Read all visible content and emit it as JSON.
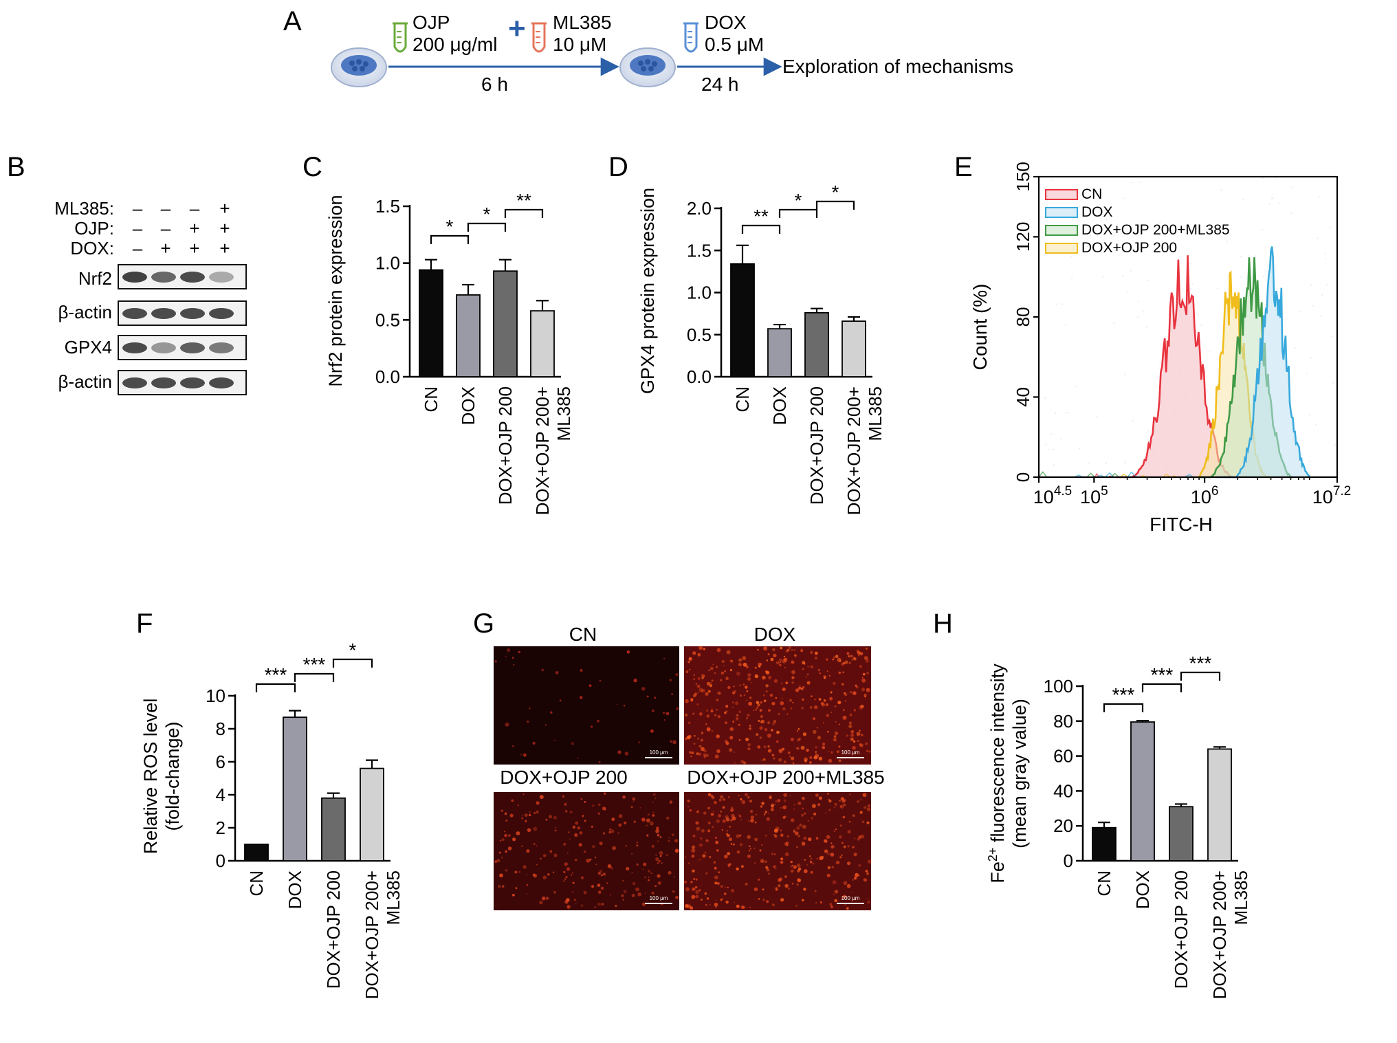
{
  "panel_letters": [
    "A",
    "B",
    "C",
    "D",
    "E",
    "F",
    "G",
    "H"
  ],
  "schematic": {
    "reagent_1_name": "OJP",
    "reagent_1_dose": "200 μg/ml",
    "reagent_2_name": "ML385",
    "reagent_2_dose": "10 μM",
    "plus_sign": "+",
    "step_1_time": "6 h",
    "reagent_3_name": "DOX",
    "reagent_3_dose": "0.5 μM",
    "step_2_time": "24 h",
    "outcome": "Exploration of mechanisms"
  },
  "western": {
    "row_labels": [
      "ML385:",
      "OJP:",
      "DOX:"
    ],
    "signs": [
      [
        "–",
        "–",
        "–",
        "+"
      ],
      [
        "–",
        "–",
        "+",
        "+"
      ],
      [
        "–",
        "+",
        "+",
        "+"
      ]
    ],
    "blots": [
      "Nrf2",
      "β-actin",
      "GPX4",
      "β-actin"
    ],
    "band_intensity": [
      [
        0.9,
        0.7,
        0.85,
        0.35
      ],
      [
        0.85,
        0.85,
        0.85,
        0.85
      ],
      [
        0.85,
        0.45,
        0.75,
        0.6
      ],
      [
        0.85,
        0.85,
        0.85,
        0.85
      ]
    ]
  },
  "group_labels": {
    "cn": "CN",
    "dox": "DOX",
    "dox_ojp": "DOX+OJP 200",
    "dox_ojp_ml_1": "DOX+OJP 200+",
    "dox_ojp_ml_2": "ML385"
  },
  "bar_colors": [
    "#0a0a0a",
    "#9a9aa6",
    "#6b6b6b",
    "#d2d2d2"
  ],
  "fluorescence": {
    "tiles": [
      "CN",
      "DOX",
      "DOX+OJP 200",
      "DOX+OJP 200+ML385"
    ],
    "scale_bar": "100 μm",
    "intensity": [
      0.05,
      0.85,
      0.45,
      0.75
    ]
  },
  "chart_data": [
    {
      "panel": "C",
      "type": "bar",
      "categories": [
        "CN",
        "DOX",
        "DOX+OJP 200",
        "DOX+OJP 200+ML385"
      ],
      "values": [
        0.94,
        0.72,
        0.93,
        0.58
      ],
      "errors": [
        0.09,
        0.09,
        0.1,
        0.09
      ],
      "ylabel": "Nrf2 protein expression",
      "ylim": [
        0,
        1.5
      ],
      "yticks": [
        0.0,
        0.5,
        1.0,
        1.5
      ],
      "yticklabels": [
        "0.0",
        "0.5",
        "1.0",
        "1.5"
      ],
      "significance": [
        {
          "groups": [
            0,
            1
          ],
          "label": "*"
        },
        {
          "groups": [
            1,
            2
          ],
          "label": "*"
        },
        {
          "groups": [
            2,
            3
          ],
          "label": "**"
        }
      ]
    },
    {
      "panel": "D",
      "type": "bar",
      "categories": [
        "CN",
        "DOX",
        "DOX+OJP 200",
        "DOX+OJP 200+ML385"
      ],
      "values": [
        1.34,
        0.57,
        0.76,
        0.66
      ],
      "errors": [
        0.22,
        0.05,
        0.05,
        0.05
      ],
      "ylabel": "GPX4 protein expression",
      "ylim": [
        0,
        2.0
      ],
      "yticks": [
        0.0,
        0.5,
        1.0,
        1.5,
        2.0
      ],
      "yticklabels": [
        "0.0",
        "0.5",
        "1.0",
        "1.5",
        "2.0"
      ],
      "significance": [
        {
          "groups": [
            0,
            1
          ],
          "label": "**"
        },
        {
          "groups": [
            1,
            2
          ],
          "label": "*"
        },
        {
          "groups": [
            2,
            3
          ],
          "label": "*"
        }
      ]
    },
    {
      "panel": "E",
      "type": "area",
      "xlabel": "FITC-H",
      "ylabel": "Count (%)",
      "x_scale": "log10",
      "xlim": [
        4.5,
        7.2
      ],
      "xticks": [
        4.5,
        5,
        6,
        7.2
      ],
      "xticklabels": [
        {
          "base": "10",
          "exp": "4.5"
        },
        {
          "base": "10",
          "exp": "5"
        },
        {
          "base": "10",
          "exp": "6"
        },
        {
          "base": "10",
          "exp": "7.2"
        }
      ],
      "ylim": [
        0,
        150
      ],
      "yticks": [
        0,
        40,
        80,
        120,
        150
      ],
      "legend_position": "top-left",
      "series": [
        {
          "name": "CN",
          "color": "#e8343f",
          "fill": "#f4b9bf",
          "peak_log_x": 5.8,
          "peak": 100,
          "width": 0.16,
          "range": [
            5.2,
            6.3
          ]
        },
        {
          "name": "DOX",
          "color": "#38a9dc",
          "fill": "#bfe2f2",
          "peak_log_x": 6.62,
          "peak": 100,
          "width": 0.12,
          "range": [
            6.1,
            6.95
          ]
        },
        {
          "name": "DOX+OJP 200+ML385",
          "color": "#3f9a45",
          "fill": "#c7e3c3",
          "peak_log_x": 6.42,
          "peak": 100,
          "width": 0.13,
          "range": [
            5.95,
            6.8
          ]
        },
        {
          "name": "DOX+OJP 200",
          "color": "#f0bd1c",
          "fill": "#f7e3a8",
          "peak_log_x": 6.25,
          "peak": 95,
          "width": 0.11,
          "range": [
            5.9,
            6.62
          ]
        }
      ]
    },
    {
      "panel": "F",
      "type": "bar",
      "categories": [
        "CN",
        "DOX",
        "DOX+OJP 200",
        "DOX+OJP 200+ML385"
      ],
      "values": [
        1.0,
        8.7,
        3.8,
        5.6
      ],
      "errors": [
        0.0,
        0.4,
        0.3,
        0.5
      ],
      "ylabel": "Relative ROS level (fold-change)",
      "ylabel_lines": [
        "Relative ROS level",
        "(fold-change)"
      ],
      "ylim": [
        0,
        10
      ],
      "yticks": [
        0,
        2,
        4,
        6,
        8,
        10
      ],
      "yticklabels": [
        "0",
        "2",
        "4",
        "6",
        "8",
        "10"
      ],
      "significance": [
        {
          "groups": [
            0,
            1
          ],
          "label": "***"
        },
        {
          "groups": [
            1,
            2
          ],
          "label": "***"
        },
        {
          "groups": [
            2,
            3
          ],
          "label": "*"
        }
      ]
    },
    {
      "panel": "H",
      "type": "bar",
      "categories": [
        "CN",
        "DOX",
        "DOX+OJP 200",
        "DOX+OJP 200+ML385"
      ],
      "values": [
        19,
        79.5,
        31,
        64
      ],
      "errors": [
        3.0,
        0.8,
        1.5,
        1.2
      ],
      "ylabel": "Fe2+ fluorescence intensity (mean gray value)",
      "ylabel_lines": [
        "Fe",
        "2+",
        " fluorescence intensity",
        "(mean gray value)"
      ],
      "ylim": [
        0,
        100
      ],
      "yticks": [
        0,
        20,
        40,
        60,
        80,
        100
      ],
      "yticklabels": [
        "0",
        "20",
        "40",
        "60",
        "80",
        "100"
      ],
      "significance": [
        {
          "groups": [
            0,
            1
          ],
          "label": "***"
        },
        {
          "groups": [
            1,
            2
          ],
          "label": "***"
        },
        {
          "groups": [
            2,
            3
          ],
          "label": "***"
        }
      ]
    }
  ]
}
